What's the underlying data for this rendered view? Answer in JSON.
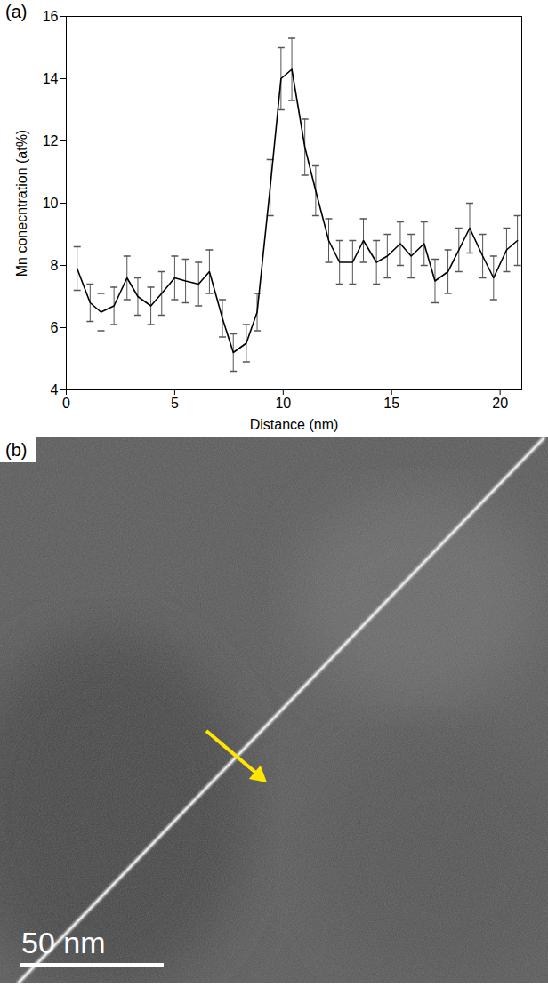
{
  "chart_data": {
    "type": "line",
    "title": "(a)",
    "x_label": "Distance (nm)",
    "y_label": "Mn conecntration (at%)",
    "x": [
      0.5,
      1.1,
      1.6,
      2.2,
      2.8,
      3.3,
      3.9,
      4.4,
      5.0,
      5.5,
      6.1,
      6.6,
      7.2,
      7.7,
      8.3,
      8.8,
      9.4,
      9.9,
      10.4,
      11.0,
      11.5,
      12.1,
      12.6,
      13.2,
      13.7,
      14.3,
      14.8,
      15.4,
      15.9,
      16.5,
      17.0,
      17.6,
      18.1,
      18.6,
      19.2,
      19.7,
      20.3,
      20.8
    ],
    "values": [
      7.9,
      6.8,
      6.5,
      6.7,
      7.6,
      7.0,
      6.7,
      7.1,
      7.6,
      7.5,
      7.4,
      7.8,
      6.3,
      5.2,
      5.5,
      6.5,
      10.5,
      14.0,
      14.3,
      11.8,
      10.4,
      8.8,
      8.1,
      8.1,
      8.8,
      8.1,
      8.3,
      8.7,
      8.3,
      8.7,
      7.5,
      7.8,
      8.5,
      9.2,
      8.3,
      7.6,
      8.5,
      8.8
    ],
    "errors": [
      0.7,
      0.6,
      0.6,
      0.6,
      0.7,
      0.6,
      0.6,
      0.7,
      0.7,
      0.7,
      0.7,
      0.7,
      0.6,
      0.6,
      0.6,
      0.6,
      0.9,
      1.0,
      1.0,
      0.9,
      0.8,
      0.7,
      0.7,
      0.7,
      0.7,
      0.7,
      0.7,
      0.7,
      0.7,
      0.7,
      0.7,
      0.7,
      0.7,
      0.8,
      0.7,
      0.7,
      0.7,
      0.8
    ],
    "color": "#000000",
    "xlim": [
      0,
      21
    ],
    "xticks": [
      0,
      5,
      10,
      15,
      20
    ],
    "ylim": [
      4,
      16
    ],
    "yticks": [
      4,
      6,
      8,
      10,
      12,
      14,
      16
    ]
  },
  "image_panel": {
    "label": "(b)",
    "scale_bar": "50 nm"
  }
}
